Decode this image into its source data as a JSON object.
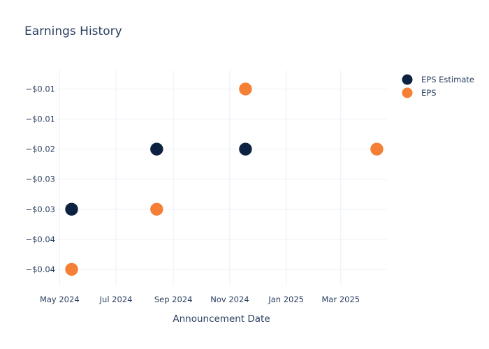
{
  "chart_data": {
    "type": "scatter",
    "title": "Earnings History",
    "xlabel": "Announcement Date",
    "ylabel": "",
    "x_ticks": [
      "May 2024",
      "Jul 2024",
      "Sep 2024",
      "Nov 2024",
      "Jan 2025",
      "Mar 2025"
    ],
    "y_ticks": [
      "−$0.01",
      "−$0.01",
      "−$0.02",
      "−$0.03",
      "−$0.03",
      "−$0.04",
      "−$0.04"
    ],
    "y_tick_values": [
      -0.01,
      -0.015,
      -0.02,
      -0.025,
      -0.03,
      -0.035,
      -0.04
    ],
    "ylim": [
      -0.0428,
      -0.0068
    ],
    "xlim": [
      "2024-04-27",
      "2025-04-20"
    ],
    "legend_position": "top-right",
    "series": [
      {
        "name": "EPS Estimate",
        "color": "#0d2240",
        "points": [
          {
            "date": "2024-05-14",
            "value": -0.03
          },
          {
            "date": "2024-08-14",
            "value": -0.02
          },
          {
            "date": "2024-11-18",
            "value": -0.02
          },
          {
            "date": "2025-04-09",
            "value": -0.02
          }
        ]
      },
      {
        "name": "EPS",
        "color": "#f47f35",
        "points": [
          {
            "date": "2024-05-14",
            "value": -0.04
          },
          {
            "date": "2024-08-14",
            "value": -0.03
          },
          {
            "date": "2024-11-18",
            "value": -0.01
          },
          {
            "date": "2025-04-09",
            "value": -0.02
          }
        ]
      }
    ]
  }
}
